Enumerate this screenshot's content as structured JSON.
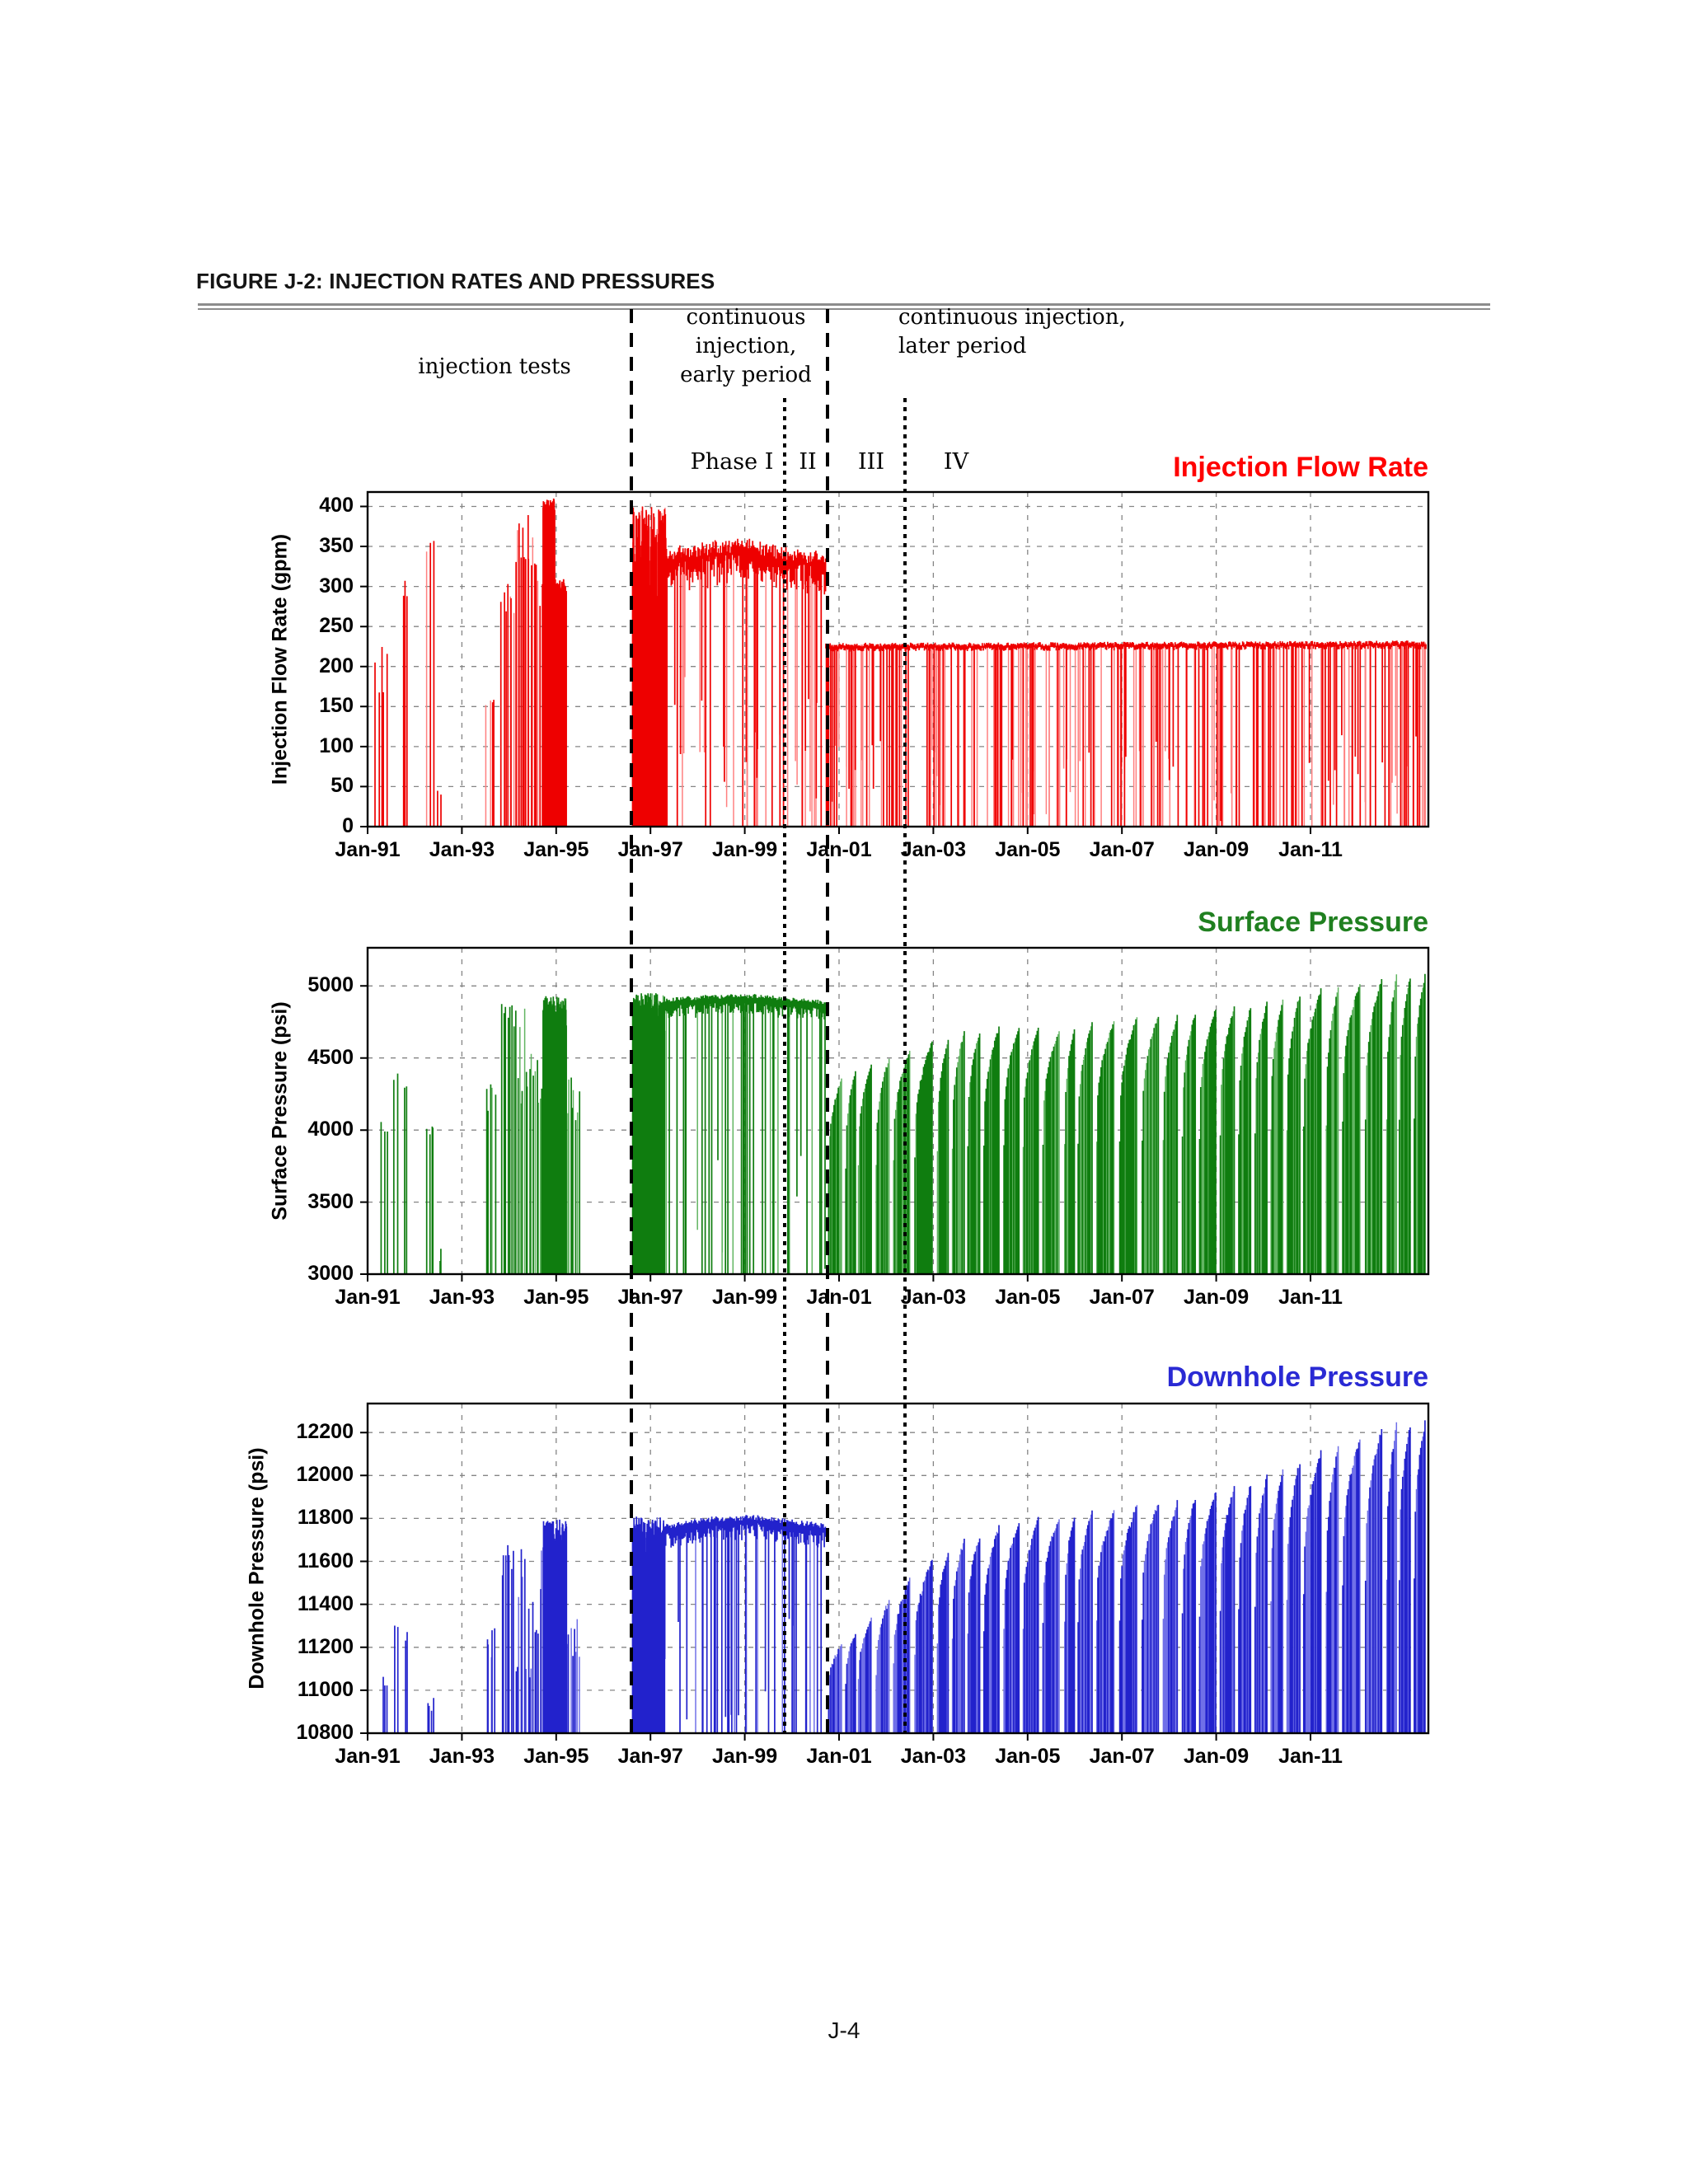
{
  "page": {
    "heading": "FIGURE J-2: INJECTION RATES AND PRESSURES",
    "page_number": "J-4"
  },
  "annotations": {
    "injection_tests": "injection tests",
    "cont_early": [
      "continuous",
      "injection,",
      "early period"
    ],
    "cont_later": [
      "continuous injection,",
      "later period"
    ],
    "phase_labels": [
      {
        "label": "Phase I",
        "year": 1998.7
      },
      {
        "label": "II",
        "year": 2000.3
      },
      {
        "label": "III",
        "year": 2001.65
      },
      {
        "label": "IV",
        "year": 2003.5
      }
    ]
  },
  "phase_lines": [
    {
      "year": 1996.6,
      "style": "dashed"
    },
    {
      "year": 1999.85,
      "style": "dotted"
    },
    {
      "year": 2000.75,
      "style": "dashed"
    },
    {
      "year": 2002.4,
      "style": "dotted"
    }
  ],
  "chart_data": [
    {
      "id": "flow",
      "type": "line",
      "title": "Injection Flow Rate",
      "title_color": "#ff0000",
      "ylabel": "Injection Flow Rate (gpm)",
      "xlabel": "",
      "color": "#ee0000",
      "color_light": "#ff8080",
      "seed": 101,
      "base": 0,
      "ylim": [
        0,
        418
      ],
      "yticks": [
        0,
        50,
        100,
        150,
        200,
        250,
        300,
        350,
        400
      ],
      "xlim": [
        1991.0,
        2013.5
      ],
      "xticks": [
        1991,
        1993,
        1995,
        1997,
        1999,
        2001,
        2003,
        2005,
        2007,
        2009,
        2011
      ],
      "xtick_labels": [
        "Jan-91",
        "Jan-93",
        "Jan-95",
        "Jan-97",
        "Jan-99",
        "Jan-01",
        "Jan-03",
        "Jan-05",
        "Jan-07",
        "Jan-09",
        "Jan-11"
      ],
      "segments": [
        {
          "type": "spikes",
          "t0": 1991.15,
          "t1": 1991.45,
          "n": 5,
          "lo": 130,
          "hi": 228,
          "light_frac": 0.2
        },
        {
          "type": "spikes",
          "t0": 1991.76,
          "t1": 1991.86,
          "n": 3,
          "lo": 280,
          "hi": 418,
          "light_frac": 0.1
        },
        {
          "type": "spikes",
          "t0": 1992.25,
          "t1": 1992.42,
          "n": 3,
          "lo": 320,
          "hi": 360,
          "light_frac": 0.2
        },
        {
          "type": "spikes",
          "t0": 1992.48,
          "t1": 1992.58,
          "n": 2,
          "lo": 40,
          "hi": 70,
          "light_frac": 0
        },
        {
          "type": "spikes",
          "t0": 1993.5,
          "t1": 1993.72,
          "n": 4,
          "lo": 148,
          "hi": 170,
          "light_frac": 0.2
        },
        {
          "type": "spikes",
          "t0": 1993.82,
          "t1": 1994.12,
          "n": 7,
          "lo": 260,
          "hi": 335,
          "light_frac": 0.25
        },
        {
          "type": "spikes",
          "t0": 1994.12,
          "t1": 1994.55,
          "n": 12,
          "lo": 320,
          "hi": 405,
          "light_frac": 0.3
        },
        {
          "type": "spikes",
          "t0": 1994.55,
          "t1": 1994.72,
          "n": 4,
          "lo": 270,
          "hi": 340,
          "light_frac": 0.3
        },
        {
          "type": "spikes",
          "t0": 1994.72,
          "t1": 1994.97,
          "n": 60,
          "lo": 388,
          "hi": 410,
          "light_frac": 0.05
        },
        {
          "type": "spikes",
          "t0": 1994.98,
          "t1": 1995.22,
          "n": 55,
          "lo": 288,
          "hi": 310,
          "light_frac": 0.05
        },
        {
          "type": "spikes",
          "t0": 1996.62,
          "t1": 1997.35,
          "n": 300,
          "lo": 200,
          "hi": 400,
          "light_frac": 0.15
        },
        {
          "type": "band",
          "t0": 1997.35,
          "t1": 2000.72,
          "thickness": 42,
          "noise": 18,
          "dip_rate": 14,
          "dip_full": 0.55,
          "dip_light": 0.5,
          "env": [
            [
              1997.35,
              340
            ],
            [
              1998.2,
              348
            ],
            [
              1999.0,
              352
            ],
            [
              1999.7,
              342
            ],
            [
              2000.72,
              336
            ]
          ]
        },
        {
          "type": "topline",
          "t0": 2000.72,
          "t1": 2013.45,
          "thickness": 6,
          "noise": 5,
          "dip_rate": 20,
          "dip_full": 0.78,
          "dip_light": 0.5,
          "env": [
            [
              2000.72,
              227
            ],
            [
              2013.45,
              230
            ]
          ]
        }
      ]
    },
    {
      "id": "surface",
      "type": "line",
      "title": "Surface Pressure",
      "title_color": "#208020",
      "ylabel": "Surface Pressure (psi)",
      "xlabel": "",
      "color": "#0f7d0f",
      "color_light": "#62b562",
      "seed": 202,
      "base": 3000,
      "ylim": [
        3000,
        5265
      ],
      "yticks": [
        3000,
        3500,
        4000,
        4500,
        5000
      ],
      "xlim": [
        1991.0,
        2013.5
      ],
      "xticks": [
        1991,
        1993,
        1995,
        1997,
        1999,
        2001,
        2003,
        2005,
        2007,
        2009,
        2011
      ],
      "xtick_labels": [
        "Jan-91",
        "Jan-93",
        "Jan-95",
        "Jan-97",
        "Jan-99",
        "Jan-01",
        "Jan-03",
        "Jan-05",
        "Jan-07",
        "Jan-09",
        "Jan-11"
      ],
      "segments": [
        {
          "type": "spikes",
          "t0": 1991.28,
          "t1": 1991.45,
          "n": 3,
          "lo": 3950,
          "hi": 4060,
          "light_frac": 0
        },
        {
          "type": "spikes",
          "t0": 1991.55,
          "t1": 1991.66,
          "n": 2,
          "lo": 4330,
          "hi": 4420,
          "light_frac": 0
        },
        {
          "type": "spikes",
          "t0": 1991.76,
          "t1": 1991.86,
          "n": 2,
          "lo": 4280,
          "hi": 4400,
          "light_frac": 0
        },
        {
          "type": "spikes",
          "t0": 1992.25,
          "t1": 1992.42,
          "n": 4,
          "lo": 3960,
          "hi": 4060,
          "light_frac": 0
        },
        {
          "type": "spikes",
          "t0": 1992.5,
          "t1": 1992.58,
          "n": 2,
          "lo": 3080,
          "hi": 3180,
          "light_frac": 0
        },
        {
          "type": "spikes",
          "t0": 1993.5,
          "t1": 1993.72,
          "n": 5,
          "lo": 4120,
          "hi": 4330,
          "light_frac": 0.2
        },
        {
          "type": "spikes",
          "t0": 1993.82,
          "t1": 1994.12,
          "n": 7,
          "lo": 4700,
          "hi": 4890,
          "light_frac": 0.2
        },
        {
          "type": "spikes",
          "t0": 1994.12,
          "t1": 1994.72,
          "n": 16,
          "lo": 4150,
          "hi": 4900,
          "light_frac": 0.3
        },
        {
          "type": "spikes",
          "t0": 1994.72,
          "t1": 1995.22,
          "n": 80,
          "lo": 4720,
          "hi": 4930,
          "light_frac": 0.1
        },
        {
          "type": "spikes",
          "t0": 1995.22,
          "t1": 1995.5,
          "n": 8,
          "lo": 4060,
          "hi": 4400,
          "light_frac": 0.3
        },
        {
          "type": "spikes",
          "t0": 1996.62,
          "t1": 1997.3,
          "n": 300,
          "lo": 4550,
          "hi": 4950,
          "light_frac": 0.15
        },
        {
          "type": "band",
          "t0": 1997.3,
          "t1": 2000.72,
          "thickness": 130,
          "noise": 30,
          "dip_rate": 13,
          "dip_full": 0.8,
          "dip_light": 0.25,
          "env": [
            [
              1997.3,
              4900
            ],
            [
              1998.2,
              4925
            ],
            [
              1999.2,
              4930
            ],
            [
              2000.72,
              4885
            ]
          ]
        },
        {
          "type": "teeth",
          "t0": 2000.78,
          "t1": 2013.45,
          "seed": 77,
          "period": 0.38,
          "duty": 0.78,
          "start_frac": 0.52,
          "noise": 30,
          "light_frac": 0.35,
          "env": [
            [
              2000.78,
              4330
            ],
            [
              2001.5,
              4450
            ],
            [
              2002.5,
              4560
            ],
            [
              2003.5,
              4680
            ],
            [
              2004.5,
              4720
            ],
            [
              2005.5,
              4700
            ],
            [
              2006.5,
              4760
            ],
            [
              2007.5,
              4790
            ],
            [
              2008.5,
              4815
            ],
            [
              2009.5,
              4870
            ],
            [
              2010.5,
              4925
            ],
            [
              2011.5,
              5000
            ],
            [
              2012.5,
              5060
            ],
            [
              2013.45,
              5100
            ]
          ]
        }
      ]
    },
    {
      "id": "downhole",
      "type": "line",
      "title": "Downhole Pressure",
      "title_color": "#2a2ad4",
      "ylabel": "Downhole Pressure (psi)",
      "xlabel": "",
      "color": "#2222cc",
      "color_light": "#7070e8",
      "seed": 303,
      "base": 10800,
      "ylim": [
        10800,
        12335
      ],
      "yticks": [
        10800,
        11000,
        11200,
        11400,
        11600,
        11800,
        12000,
        12200
      ],
      "xlim": [
        1991.0,
        2013.5
      ],
      "xticks": [
        1991,
        1993,
        1995,
        1997,
        1999,
        2001,
        2003,
        2005,
        2007,
        2009,
        2011
      ],
      "xtick_labels": [
        "Jan-91",
        "Jan-93",
        "Jan-95",
        "Jan-97",
        "Jan-99",
        "Jan-01",
        "Jan-03",
        "Jan-05",
        "Jan-07",
        "Jan-09",
        "Jan-11"
      ],
      "segments": [
        {
          "type": "spikes",
          "t0": 1991.28,
          "t1": 1991.45,
          "n": 3,
          "lo": 10990,
          "hi": 11080,
          "light_frac": 0
        },
        {
          "type": "spikes",
          "t0": 1991.55,
          "t1": 1991.66,
          "n": 2,
          "lo": 11260,
          "hi": 11330,
          "light_frac": 0
        },
        {
          "type": "spikes",
          "t0": 1991.76,
          "t1": 1991.86,
          "n": 2,
          "lo": 11230,
          "hi": 11320,
          "light_frac": 0
        },
        {
          "type": "spikes",
          "t0": 1992.25,
          "t1": 1992.42,
          "n": 4,
          "lo": 10900,
          "hi": 10990,
          "light_frac": 0
        },
        {
          "type": "spikes",
          "t0": 1993.5,
          "t1": 1993.72,
          "n": 5,
          "lo": 11130,
          "hi": 11300,
          "light_frac": 0.2
        },
        {
          "type": "spikes",
          "t0": 1993.82,
          "t1": 1994.12,
          "n": 7,
          "lo": 11520,
          "hi": 11690,
          "light_frac": 0.2
        },
        {
          "type": "spikes",
          "t0": 1994.12,
          "t1": 1994.72,
          "n": 16,
          "lo": 11050,
          "hi": 11690,
          "light_frac": 0.3
        },
        {
          "type": "spikes",
          "t0": 1994.72,
          "t1": 1995.22,
          "n": 80,
          "lo": 11650,
          "hi": 11800,
          "light_frac": 0.1
        },
        {
          "type": "spikes",
          "t0": 1995.22,
          "t1": 1995.5,
          "n": 8,
          "lo": 11120,
          "hi": 11360,
          "light_frac": 0.3
        },
        {
          "type": "spikes",
          "t0": 1996.62,
          "t1": 1997.3,
          "n": 300,
          "lo": 11420,
          "hi": 11810,
          "light_frac": 0.15
        },
        {
          "type": "band",
          "t0": 1997.3,
          "t1": 2000.72,
          "thickness": 100,
          "noise": 25,
          "dip_rate": 13,
          "dip_full": 0.8,
          "dip_light": 0.25,
          "env": [
            [
              1997.3,
              11760
            ],
            [
              1998.2,
              11795
            ],
            [
              1999.2,
              11805
            ],
            [
              2000.72,
              11765
            ]
          ]
        },
        {
          "type": "teeth",
          "t0": 2000.78,
          "t1": 2013.45,
          "seed": 77,
          "period": 0.38,
          "duty": 0.78,
          "start_frac": 0.5,
          "noise": 30,
          "light_frac": 0.45,
          "env": [
            [
              2000.78,
              11180
            ],
            [
              2001.5,
              11300
            ],
            [
              2002.5,
              11530
            ],
            [
              2003.5,
              11690
            ],
            [
              2004.5,
              11770
            ],
            [
              2005.5,
              11810
            ],
            [
              2006.5,
              11840
            ],
            [
              2007.5,
              11865
            ],
            [
              2008.5,
              11895
            ],
            [
              2009.5,
              11960
            ],
            [
              2010.5,
              12045
            ],
            [
              2011.5,
              12135
            ],
            [
              2012.5,
              12225
            ],
            [
              2013.45,
              12265
            ]
          ]
        }
      ]
    }
  ]
}
